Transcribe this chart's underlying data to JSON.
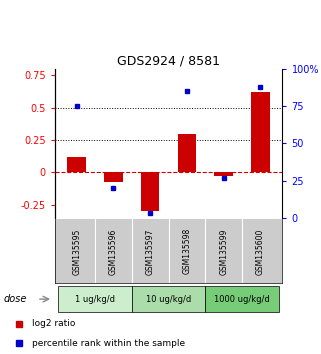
{
  "title": "GDS2924 / 8581",
  "samples": [
    "GSM135595",
    "GSM135596",
    "GSM135597",
    "GSM135598",
    "GSM135599",
    "GSM135600"
  ],
  "log2_ratio": [
    0.12,
    -0.07,
    -0.3,
    0.3,
    -0.03,
    0.62
  ],
  "percentile_rank": [
    75,
    20,
    3,
    85,
    27,
    88
  ],
  "dose_groups": [
    {
      "label": "1 ug/kg/d",
      "samples": [
        0,
        1
      ],
      "color": "#cceecc"
    },
    {
      "label": "10 ug/kg/d",
      "samples": [
        2,
        3
      ],
      "color": "#aaddaa"
    },
    {
      "label": "1000 ug/kg/d",
      "samples": [
        4,
        5
      ],
      "color": "#77cc77"
    }
  ],
  "bar_color": "#cc0000",
  "dot_color": "#0000cc",
  "ylim_left": [
    -0.35,
    0.8
  ],
  "ylim_right": [
    0,
    100
  ],
  "yticks_left": [
    -0.25,
    0.0,
    0.25,
    0.5,
    0.75
  ],
  "ytick_labels_left": [
    "-0.25",
    "0",
    "0.25",
    "0.5",
    "0.75"
  ],
  "yticks_right": [
    0,
    25,
    50,
    75,
    100
  ],
  "ytick_labels_right": [
    "0",
    "25",
    "50",
    "75",
    "100%"
  ],
  "hlines": [
    0.5,
    0.25
  ],
  "hline_zero_color": "#cc0000",
  "background_samples": "#cccccc",
  "dose_label": "dose"
}
